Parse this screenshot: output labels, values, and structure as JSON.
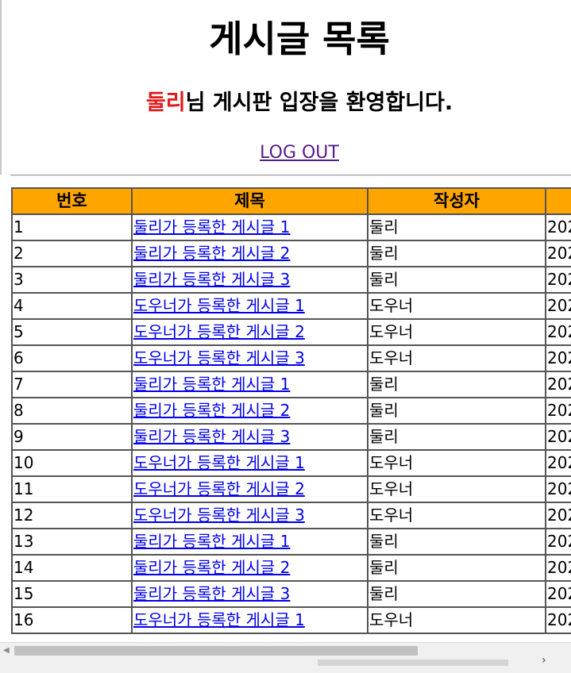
{
  "page": {
    "title": "게시글 목록",
    "welcome_user": "둘리",
    "welcome_rest": "님 게시판 입장을 환영합니다.",
    "logout_label": "LOG OUT"
  },
  "colors": {
    "header_bg": "#ffa500",
    "username": "#e0191b",
    "link": "#0000ee",
    "visited_link": "#551a8b"
  },
  "table": {
    "columns": [
      "번호",
      "제목",
      "작성자",
      ""
    ],
    "rows": [
      {
        "no": "1",
        "title": "둘리가 등록한 게시글 1",
        "author": "둘리",
        "date": "202"
      },
      {
        "no": "2",
        "title": "둘리가 등록한 게시글 2",
        "author": "둘리",
        "date": "202"
      },
      {
        "no": "3",
        "title": "둘리가 등록한 게시글 3",
        "author": "둘리",
        "date": "202"
      },
      {
        "no": "4",
        "title": "도우너가 등록한 게시글 1",
        "author": "도우너",
        "date": "202"
      },
      {
        "no": "5",
        "title": "도우너가 등록한 게시글 2",
        "author": "도우너",
        "date": "202"
      },
      {
        "no": "6",
        "title": "도우너가 등록한 게시글 3",
        "author": "도우너",
        "date": "202"
      },
      {
        "no": "7",
        "title": "둘리가 등록한 게시글 1",
        "author": "둘리",
        "date": "202"
      },
      {
        "no": "8",
        "title": "둘리가 등록한 게시글 2",
        "author": "둘리",
        "date": "202"
      },
      {
        "no": "9",
        "title": "둘리가 등록한 게시글 3",
        "author": "둘리",
        "date": "202"
      },
      {
        "no": "10",
        "title": "도우너가 등록한 게시글 1",
        "author": "도우너",
        "date": "202"
      },
      {
        "no": "11",
        "title": "도우너가 등록한 게시글 2",
        "author": "도우너",
        "date": "202"
      },
      {
        "no": "12",
        "title": "도우너가 등록한 게시글 3",
        "author": "도우너",
        "date": "202"
      },
      {
        "no": "13",
        "title": "둘리가 등록한 게시글 1",
        "author": "둘리",
        "date": "202"
      },
      {
        "no": "14",
        "title": "둘리가 등록한 게시글 2",
        "author": "둘리",
        "date": "202"
      },
      {
        "no": "15",
        "title": "둘리가 등록한 게시글 3",
        "author": "둘리",
        "date": "202"
      },
      {
        "no": "16",
        "title": "도우너가 등록한 게시글 1",
        "author": "도우너",
        "date": "202"
      }
    ]
  },
  "scrollbar": {
    "left_arrow_icon": "scroll-left-arrow-icon",
    "right_arrow_icon": "scroll-right-arrow-icon"
  }
}
